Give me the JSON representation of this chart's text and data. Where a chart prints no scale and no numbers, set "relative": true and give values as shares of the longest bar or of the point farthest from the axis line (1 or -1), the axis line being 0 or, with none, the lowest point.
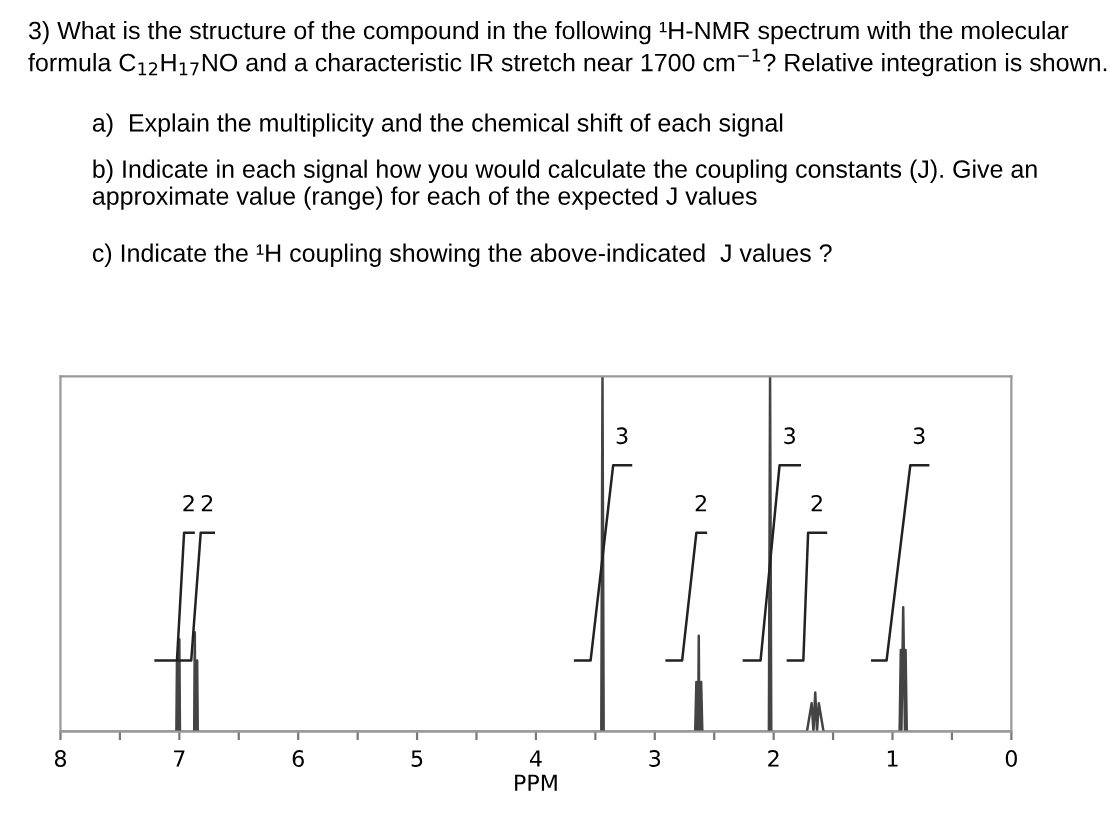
{
  "chart_data": {
    "type": "line",
    "title": "3) What is the structure of the compound in the following ¹H-NMR spectrum with the molecular formula C$_{12}$H$_{17}$NO and a characteristic IR stretch near 1700 cm$^{−1}$? Relative integration is shown.",
    "annotations": [
      "a)  Explain the multiplicity and the chemical shift of each signal",
      "b) Indicate in each signal how you would calculate the coupling constants (J). Give an approximate value (range) for each of the expected J values",
      "c) Indicate the ¹H coupling showing the above-indicated  J values ?",
      {
        "text": "2",
        "x": 6.92,
        "y": 0.56
      },
      {
        "text": "2",
        "x": 6.765,
        "y": 0.56
      },
      {
        "text": "3",
        "x": 3.275,
        "y": 0.75
      },
      {
        "text": "2",
        "x": 2.61,
        "y": 0.56
      },
      {
        "text": "3",
        "x": 1.865,
        "y": 0.75
      },
      {
        "text": "2",
        "x": 1.635,
        "y": 0.56
      },
      {
        "text": "3",
        "x": 0.775,
        "y": 0.75
      }
    ],
    "xlabel": "PPM",
    "relative": true,
    "xlim": [
      8,
      0
    ],
    "xticks": [
      8,
      {
        "value": 7.5,
        "label": null
      },
      7,
      {
        "value": 6.5,
        "label": null
      },
      6,
      {
        "value": 5.5,
        "label": null
      },
      5,
      {
        "value": 4.5,
        "label": null
      },
      4,
      {
        "value": 3.5,
        "label": null
      },
      3,
      {
        "value": 2.5,
        "label": null
      },
      2,
      {
        "value": 1.5,
        "label": null
      },
      1,
      {
        "value": 0.5,
        "label": null
      },
      0
    ],
    "tick_labels": "x",
    "grid": false,
    "legend": false,
    "marker": "none",
    "line_style": "solid",
    "series": [
      {
        "color": "#444444",
        "x": [
          8.0,
          7.025,
          7.02,
          7.015,
          7.005,
          7.0,
          6.995,
          6.875,
          6.87,
          6.865,
          6.855,
          6.85,
          6.845,
          3.45,
          3.44,
          3.43,
          2.66,
          2.65,
          2.64,
          2.635,
          2.63,
          2.625,
          2.62,
          2.61,
          2.6,
          2.04,
          2.03,
          2.02,
          1.72,
          1.7,
          1.68,
          1.665,
          1.65,
          1.635,
          1.62,
          1.6,
          1.58,
          0.94,
          0.93,
          0.925,
          0.91,
          0.895,
          0.89,
          0.88,
          0.0
        ],
        "values": [
          0,
          0,
          0.2,
          0,
          0,
          0.26,
          0,
          0,
          0.28,
          0,
          0,
          0.2,
          0,
          0,
          1,
          0,
          0,
          0.14,
          0,
          0,
          0.27,
          0,
          0,
          0.14,
          0,
          0,
          1,
          0,
          0,
          0.04,
          0.08,
          0,
          0.11,
          0,
          0.08,
          0.04,
          0,
          0,
          0.23,
          0,
          0.35,
          0,
          0.23,
          0,
          0
        ]
      },
      {
        "color": "#222222",
        "x": [
          7.2,
          7.02,
          6.96,
          6.88,
          null,
          7.02,
          6.9,
          6.82,
          6.71,
          null,
          3.67,
          3.54,
          3.35,
          3.2,
          null,
          2.9,
          2.77,
          2.65,
          2.57,
          null,
          2.25,
          2.11,
          1.95,
          1.78,
          null,
          1.88,
          1.75,
          1.71,
          1.56,
          null,
          1.17,
          1.05,
          0.85,
          0.7
        ],
        "values": [
          0.2,
          0.2,
          0.56,
          0.56,
          null,
          0.2,
          0.2,
          0.56,
          0.56,
          null,
          0.2,
          0.2,
          0.75,
          0.75,
          null,
          0.2,
          0.2,
          0.56,
          0.56,
          null,
          0.2,
          0.2,
          0.75,
          0.75,
          null,
          0.2,
          0.2,
          0.56,
          0.56,
          null,
          0.2,
          0.2,
          0.75,
          0.75
        ]
      }
    ]
  }
}
